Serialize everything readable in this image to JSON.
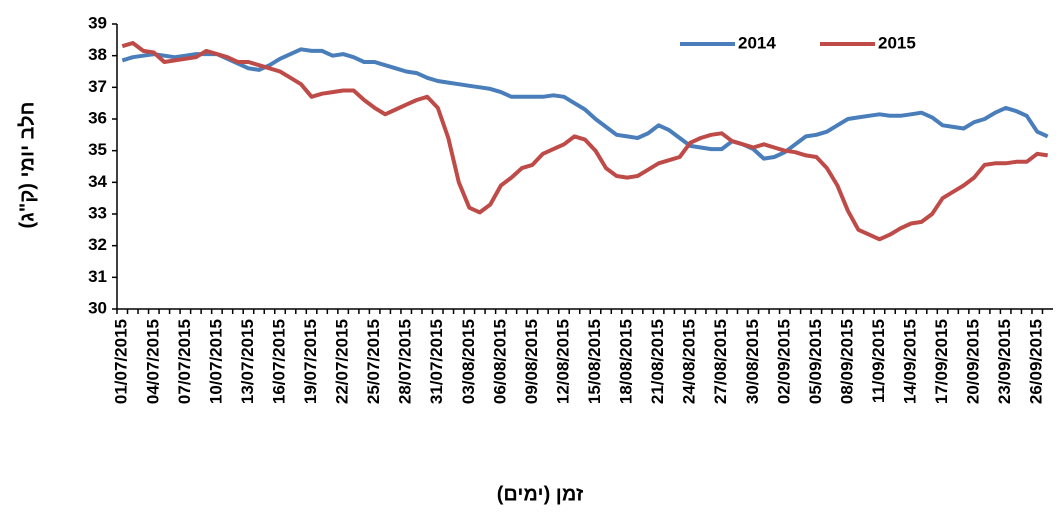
{
  "chart_data": {
    "type": "line",
    "x_label": "זמן (ימים)",
    "y_label": "חלב יומי (ק\"ג)",
    "categories": [
      "01/07/2015",
      null,
      null,
      "04/07/2015",
      null,
      null,
      "07/07/2015",
      null,
      null,
      "10/07/2015",
      null,
      null,
      "13/07/2015",
      null,
      null,
      "16/07/2015",
      null,
      null,
      "19/07/2015",
      null,
      null,
      "22/07/2015",
      null,
      null,
      "25/07/2015",
      null,
      null,
      "28/07/2015",
      null,
      null,
      "31/07/2015",
      null,
      null,
      "03/08/2015",
      null,
      null,
      "06/08/2015",
      null,
      null,
      "09/08/2015",
      null,
      null,
      "12/08/2015",
      null,
      null,
      "15/08/2015",
      null,
      null,
      "18/08/2015",
      null,
      null,
      "21/08/2015",
      null,
      null,
      "24/08/2015",
      null,
      null,
      "27/08/2015",
      null,
      null,
      "30/08/2015",
      null,
      null,
      "02/09/2015",
      null,
      null,
      "05/09/2015",
      null,
      null,
      "08/09/2015",
      null,
      null,
      "11/09/2015",
      null,
      null,
      "14/09/2015",
      null,
      null,
      "17/09/2015",
      null,
      null,
      "20/09/2015",
      null,
      null,
      "23/09/2015",
      null,
      null,
      "26/09/2015",
      null
    ],
    "series": [
      {
        "name": "2014",
        "color": "#4a7ebb",
        "values": [
          37.85,
          37.95,
          38.0,
          38.05,
          38.0,
          37.95,
          38.0,
          38.05,
          38.05,
          38.05,
          37.9,
          37.75,
          37.6,
          37.55,
          37.7,
          37.9,
          38.05,
          38.2,
          38.15,
          38.15,
          38.0,
          38.05,
          37.95,
          37.8,
          37.8,
          37.7,
          37.6,
          37.5,
          37.45,
          37.3,
          37.2,
          37.15,
          37.1,
          37.05,
          37.0,
          36.95,
          36.85,
          36.7,
          36.7,
          36.7,
          36.7,
          36.75,
          36.7,
          36.5,
          36.3,
          36.0,
          35.75,
          35.5,
          35.45,
          35.4,
          35.55,
          35.8,
          35.65,
          35.4,
          35.15,
          35.1,
          35.05,
          35.05,
          35.3,
          35.2,
          35.05,
          34.75,
          34.8,
          34.95,
          35.2,
          35.45,
          35.5,
          35.6,
          35.8,
          36.0,
          36.05,
          36.1,
          36.15,
          36.1,
          36.1,
          36.15,
          36.2,
          36.05,
          35.8,
          35.75,
          35.7,
          35.9,
          36.0,
          36.2,
          36.35,
          36.25,
          36.1,
          35.6,
          35.45
        ]
      },
      {
        "name": "2015",
        "color": "#be4b48",
        "values": [
          38.3,
          38.4,
          38.15,
          38.1,
          37.8,
          37.85,
          37.9,
          37.95,
          38.15,
          38.05,
          37.95,
          37.8,
          37.8,
          37.7,
          37.6,
          37.5,
          37.3,
          37.1,
          36.7,
          36.8,
          36.85,
          36.9,
          36.9,
          36.6,
          36.35,
          36.15,
          36.3,
          36.45,
          36.6,
          36.7,
          36.35,
          35.4,
          34.0,
          33.2,
          33.05,
          33.3,
          33.9,
          34.15,
          34.45,
          34.55,
          34.9,
          35.05,
          35.2,
          35.45,
          35.35,
          35.0,
          34.45,
          34.2,
          34.15,
          34.2,
          34.4,
          34.6,
          34.7,
          34.8,
          35.25,
          35.4,
          35.5,
          35.55,
          35.3,
          35.2,
          35.1,
          35.2,
          35.1,
          35.0,
          34.95,
          34.85,
          34.8,
          34.45,
          33.9,
          33.1,
          32.5,
          32.35,
          32.2,
          32.35,
          32.55,
          32.7,
          32.75,
          33.0,
          33.5,
          33.7,
          33.9,
          34.15,
          34.55,
          34.6,
          34.6,
          34.65,
          34.65,
          34.9,
          34.85
        ]
      }
    ],
    "ylim": [
      30,
      39
    ],
    "yticks": [
      30,
      31,
      32,
      33,
      34,
      35,
      36,
      37,
      38,
      39
    ],
    "grid": false,
    "legend": "top-right"
  }
}
